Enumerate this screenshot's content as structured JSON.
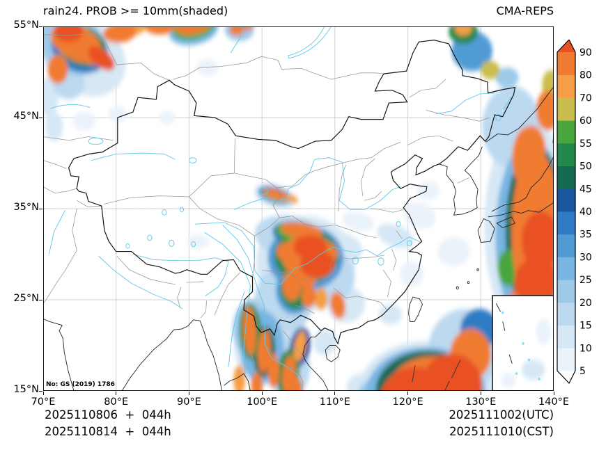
{
  "header": {
    "title": "rain24. PROB >= 10mm(shaded)",
    "model": "CMA-REPS"
  },
  "footer": {
    "init_utc": "2025110806  +  044h",
    "init_cst": "2025110814  +  044h",
    "valid_utc": "2025111002(UTC)",
    "valid_cst": "2025111010(CST)"
  },
  "map_note": "No: GS (2019) 1786",
  "chart_data": {
    "type": "heatmap",
    "title": "rain24. PROB >= 10mm(shaded)",
    "model": "CMA-REPS",
    "field": "probability of 24h rain >= 10mm, shaded, percent",
    "projection": "lon-lat",
    "lon_range": [
      70,
      140
    ],
    "lat_range": [
      15,
      55
    ],
    "grid": "dashed",
    "x_ticks": [
      {
        "v": 70,
        "label": "70°E"
      },
      {
        "v": 80,
        "label": "80°E"
      },
      {
        "v": 90,
        "label": "90°E"
      },
      {
        "v": 100,
        "label": "100°E"
      },
      {
        "v": 110,
        "label": "110°E"
      },
      {
        "v": 120,
        "label": "120°E"
      },
      {
        "v": 130,
        "label": "130°E"
      },
      {
        "v": 140,
        "label": "140°E"
      }
    ],
    "y_ticks": [
      {
        "v": 55,
        "label": "55°N"
      },
      {
        "v": 45,
        "label": "45°N"
      },
      {
        "v": 35,
        "label": "35°N"
      },
      {
        "v": 25,
        "label": "25°N"
      },
      {
        "v": 15,
        "label": "15°N"
      }
    ],
    "colorbar": {
      "position": "right",
      "boundaries": [
        5,
        10,
        15,
        20,
        25,
        30,
        35,
        40,
        45,
        50,
        55,
        60,
        70,
        80,
        90
      ],
      "segment_colors": [
        "#eaf2fa",
        "#d6e7f5",
        "#bcd9f0",
        "#9ec9e9",
        "#79b5e2",
        "#519bd5",
        "#2f7cc4",
        "#1a55a0",
        "#156b52",
        "#22884b",
        "#4aa63c",
        "#c9bd4d",
        "#f59e45",
        "#f07b32"
      ],
      "under_color": "#ffffff",
      "over_color": "#e95123"
    },
    "inset": {
      "lon": [
        131.6,
        140.0
      ],
      "lat": [
        15.0,
        25.46
      ]
    },
    "shaded_blobs": [
      [
        75.5,
        51.8,
        6.0,
        4.2,
        -20,
        12
      ],
      [
        74.0,
        53.0,
        4.8,
        3.2,
        -15,
        22
      ],
      [
        75.0,
        52.6,
        4.0,
        2.6,
        -15,
        37
      ],
      [
        75.2,
        52.9,
        3.4,
        2.2,
        -15,
        52
      ],
      [
        75.0,
        53.0,
        3.0,
        1.9,
        -15,
        85
      ],
      [
        74.5,
        53.3,
        3.0,
        1.9,
        -12,
        65
      ],
      [
        73.8,
        53.6,
        2.8,
        1.7,
        -10,
        85
      ],
      [
        76.0,
        52.2,
        2.0,
        1.2,
        -25,
        85
      ],
      [
        78.0,
        51.5,
        2.0,
        1.0,
        -30,
        95
      ],
      [
        73.5,
        54.5,
        2.0,
        1.2,
        0,
        95
      ],
      [
        80.5,
        54.3,
        2.3,
        1.1,
        5,
        85
      ],
      [
        82.5,
        54.9,
        1.5,
        0.8,
        0,
        75
      ],
      [
        72.0,
        50.3,
        1.4,
        1.6,
        0,
        85
      ],
      [
        73.5,
        48.8,
        2.2,
        1.8,
        0,
        17
      ],
      [
        70.8,
        47.3,
        1.3,
        2.2,
        0,
        12
      ],
      [
        86.0,
        55.1,
        2.2,
        1.0,
        0,
        85
      ],
      [
        90.6,
        54.6,
        3.4,
        1.6,
        8,
        27
      ],
      [
        90.6,
        54.8,
        2.8,
        1.2,
        8,
        57
      ],
      [
        90.6,
        55.0,
        2.4,
        0.9,
        8,
        85
      ],
      [
        96.9,
        54.6,
        2.0,
        1.2,
        0,
        22
      ],
      [
        96.6,
        54.7,
        1.1,
        0.7,
        0,
        85
      ],
      [
        98.0,
        55.2,
        0.9,
        0.6,
        0,
        85
      ],
      [
        101.8,
        36.4,
        2.8,
        1.2,
        -12,
        17
      ],
      [
        101.8,
        36.5,
        2.2,
        0.8,
        -12,
        42
      ],
      [
        101.9,
        36.5,
        1.9,
        0.6,
        -12,
        65
      ],
      [
        101.9,
        36.6,
        1.6,
        0.5,
        -12,
        85
      ],
      [
        104.1,
        36.1,
        0.9,
        0.4,
        -20,
        75
      ],
      [
        106.0,
        29.0,
        6.8,
        5.2,
        0,
        12
      ],
      [
        104.0,
        31.8,
        5.0,
        2.4,
        -8,
        17
      ],
      [
        108.5,
        27.5,
        4.2,
        3.2,
        0,
        17
      ],
      [
        103.0,
        25.0,
        4.0,
        3.8,
        0,
        17
      ],
      [
        110.8,
        30.8,
        3.0,
        1.6,
        -10,
        12
      ],
      [
        111.5,
        24.5,
        2.6,
        2.0,
        0,
        12
      ],
      [
        106.0,
        29.6,
        5.2,
        3.6,
        0,
        32
      ],
      [
        105.0,
        32.2,
        3.6,
        1.4,
        -6,
        37
      ],
      [
        104.5,
        26.0,
        2.6,
        2.6,
        0,
        32
      ],
      [
        106.1,
        29.8,
        4.4,
        3.0,
        0,
        52
      ],
      [
        106.3,
        29.8,
        3.6,
        2.4,
        0,
        85
      ],
      [
        104.9,
        32.4,
        3.1,
        1.1,
        -6,
        57
      ],
      [
        104.6,
        26.2,
        2.1,
        2.2,
        0,
        52
      ],
      [
        105.4,
        32.6,
        2.9,
        0.85,
        -6,
        85
      ],
      [
        106.6,
        30.8,
        2.3,
        1.3,
        0,
        95
      ],
      [
        105.0,
        29.4,
        1.9,
        1.5,
        10,
        85
      ],
      [
        107.6,
        28.9,
        2.4,
        1.5,
        0,
        95
      ],
      [
        105.9,
        27.6,
        1.7,
        1.2,
        0,
        85
      ],
      [
        108.9,
        30.3,
        1.6,
        1.0,
        -10,
        85
      ],
      [
        103.2,
        30.3,
        1.2,
        1.0,
        0,
        85
      ],
      [
        104.1,
        26.6,
        1.3,
        1.7,
        0,
        85
      ],
      [
        106.4,
        25.4,
        1.0,
        1.3,
        0,
        85
      ],
      [
        108.1,
        25.1,
        0.9,
        1.2,
        0,
        75
      ],
      [
        110.4,
        24.4,
        1.0,
        1.5,
        15,
        85
      ],
      [
        100.8,
        19.8,
        4.6,
        4.2,
        0,
        12
      ],
      [
        98.6,
        21.8,
        2.6,
        3.2,
        0,
        22
      ],
      [
        100.0,
        19.8,
        3.0,
        4.0,
        0,
        27
      ],
      [
        103.6,
        17.6,
        3.0,
        3.4,
        0,
        17
      ],
      [
        98.4,
        21.5,
        1.5,
        3.1,
        4,
        52
      ],
      [
        100.3,
        19.3,
        1.5,
        2.8,
        -4,
        47
      ],
      [
        103.6,
        16.9,
        1.5,
        2.7,
        -8,
        52
      ],
      [
        105.2,
        19.8,
        1.4,
        2.2,
        -14,
        42
      ],
      [
        98.3,
        21.6,
        0.9,
        2.7,
        4,
        85
      ],
      [
        100.3,
        19.4,
        0.9,
        2.4,
        -4,
        85
      ],
      [
        101.6,
        17.2,
        0.8,
        1.9,
        0,
        85
      ],
      [
        103.7,
        16.8,
        0.9,
        2.1,
        -8,
        85
      ],
      [
        105.2,
        19.9,
        0.8,
        1.7,
        -14,
        75
      ],
      [
        104.6,
        15.4,
        1.0,
        1.2,
        0,
        85
      ],
      [
        96.9,
        16.2,
        0.8,
        1.6,
        0,
        75
      ],
      [
        99.3,
        15.6,
        0.8,
        1.4,
        0,
        85
      ],
      [
        122.5,
        14.5,
        9.5,
        6.0,
        0,
        12
      ],
      [
        127.8,
        19.5,
        5.0,
        4.5,
        0,
        17
      ],
      [
        122.5,
        14.8,
        8.2,
        5.0,
        0,
        27
      ],
      [
        122.8,
        15.0,
        7.2,
        4.4,
        0,
        47
      ],
      [
        123.5,
        15.0,
        6.2,
        3.8,
        0,
        85
      ],
      [
        121.0,
        14.0,
        4.8,
        3.6,
        0,
        95
      ],
      [
        126.0,
        15.5,
        4.2,
        3.6,
        0,
        95
      ],
      [
        128.6,
        19.0,
        2.8,
        2.8,
        0,
        85
      ],
      [
        118.3,
        12.8,
        3.2,
        2.6,
        0,
        85
      ],
      [
        129.8,
        21.8,
        2.6,
        2.2,
        0,
        37
      ],
      [
        116.2,
        14.0,
        3.2,
        2.6,
        0,
        22
      ],
      [
        113.8,
        15.5,
        2.2,
        1.4,
        0,
        12
      ],
      [
        136.5,
        33.0,
        6.0,
        12.0,
        0,
        12
      ],
      [
        134.2,
        44.0,
        4.0,
        4.5,
        0,
        17
      ],
      [
        137.0,
        32.0,
        5.0,
        10.5,
        0,
        27
      ],
      [
        137.4,
        32.5,
        4.0,
        9.5,
        0,
        47
      ],
      [
        137.6,
        32.5,
        3.4,
        8.8,
        0,
        85
      ],
      [
        136.5,
        40.5,
        2.2,
        3.5,
        0,
        85
      ],
      [
        137.6,
        27.0,
        3.0,
        2.6,
        0,
        95
      ],
      [
        138.2,
        31.5,
        2.6,
        3.2,
        0,
        95
      ],
      [
        137.9,
        36.5,
        2.2,
        3.0,
        0,
        85
      ],
      [
        136.9,
        41.5,
        2.0,
        2.6,
        0,
        85
      ],
      [
        139.2,
        45.8,
        1.6,
        2.2,
        0,
        85
      ],
      [
        135.6,
        24.6,
        2.0,
        1.6,
        0,
        85
      ],
      [
        133.8,
        28.5,
        1.5,
        2.0,
        0,
        57
      ],
      [
        128.8,
        52.3,
        2.8,
        2.2,
        0,
        32
      ],
      [
        127.6,
        54.4,
        2.0,
        1.3,
        0,
        52
      ],
      [
        127.6,
        54.8,
        1.2,
        0.8,
        0,
        75
      ],
      [
        131.3,
        50.2,
        1.3,
        1.0,
        0,
        65
      ],
      [
        133.6,
        49.4,
        1.6,
        1.1,
        0,
        22
      ],
      [
        139.6,
        48.6,
        1.2,
        1.6,
        0,
        65
      ],
      [
        75.6,
        44.6,
        1.6,
        1.0,
        0,
        8
      ],
      [
        80.2,
        45.4,
        1.3,
        0.8,
        0,
        8
      ],
      [
        92.5,
        50.5,
        1.5,
        0.9,
        0,
        8
      ],
      [
        113.2,
        33.6,
        2.2,
        1.0,
        -10,
        8
      ],
      [
        118.3,
        32.0,
        2.6,
        1.2,
        -15,
        12
      ],
      [
        121.6,
        34.2,
        2.2,
        1.4,
        -10,
        8
      ],
      [
        122.8,
        37.0,
        1.6,
        1.0,
        0,
        8
      ],
      [
        117.6,
        23.4,
        1.6,
        1.1,
        0,
        12
      ],
      [
        126.3,
        30.3,
        2.2,
        1.6,
        0,
        8
      ],
      [
        91.2,
        31.4,
        1.5,
        0.8,
        0,
        8
      ],
      [
        87.0,
        45.0,
        1.1,
        0.7,
        0,
        8
      ],
      [
        71.5,
        44.0,
        1.2,
        1.6,
        0,
        12
      ],
      [
        108.6,
        20.3,
        1.6,
        1.4,
        0,
        12
      ],
      [
        120.5,
        27.8,
        1.6,
        1.4,
        0,
        8
      ]
    ],
    "inset_blobs": [
      [
        137.2,
        17.3,
        1.6,
        1.1,
        0,
        12
      ],
      [
        138.6,
        21.5,
        1.0,
        1.4,
        0,
        8
      ],
      [
        133.8,
        16.2,
        1.0,
        0.8,
        0,
        8
      ]
    ]
  }
}
